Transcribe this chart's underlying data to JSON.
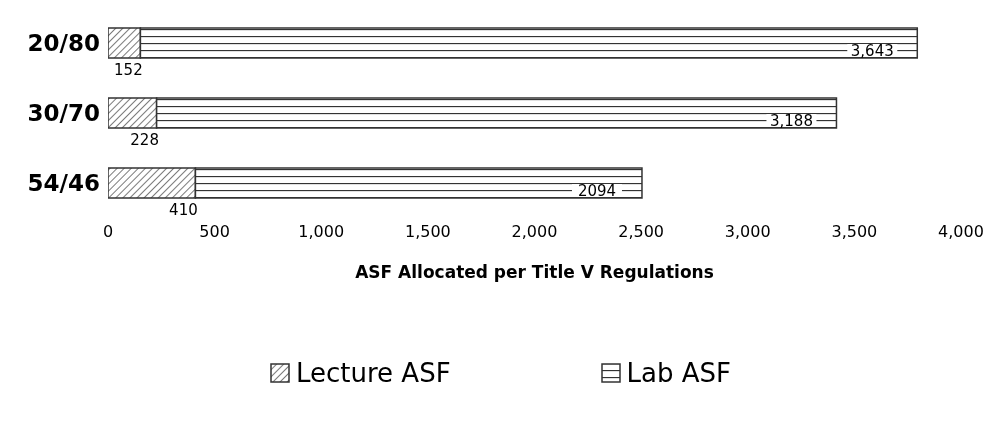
{
  "chart_data": {
    "type": "bar",
    "orientation": "horizontal",
    "stacked": true,
    "categories": [
      "20/80",
      "30/70",
      "54/46"
    ],
    "series": [
      {
        "name": "Lecture ASF",
        "color": "#333333",
        "values": [
          152,
          228,
          410
        ],
        "value_labels": [
          "152",
          "228",
          "410"
        ]
      },
      {
        "name": "Lab ASF",
        "color": "#333333",
        "values": [
          3643,
          3188,
          2094
        ],
        "value_labels": [
          "3,643",
          "3,188",
          "2094"
        ]
      }
    ],
    "xlabel": "ASF Allocated per Title V Regulations",
    "xlim": [
      0,
      4000
    ],
    "xticks": [
      0,
      500,
      {
        "value": 1000,
        "label": "1,000"
      },
      {
        "value": 1500,
        "label": "1,500"
      },
      {
        "value": 2000,
        "label": "2,000"
      },
      {
        "value": 2500,
        "label": "2,500"
      },
      {
        "value": 3000,
        "label": "3,000"
      },
      {
        "value": 3500,
        "label": "3,500"
      },
      {
        "value": 4000,
        "label": "4,000"
      }
    ],
    "grid": false,
    "legend": "bottom"
  }
}
